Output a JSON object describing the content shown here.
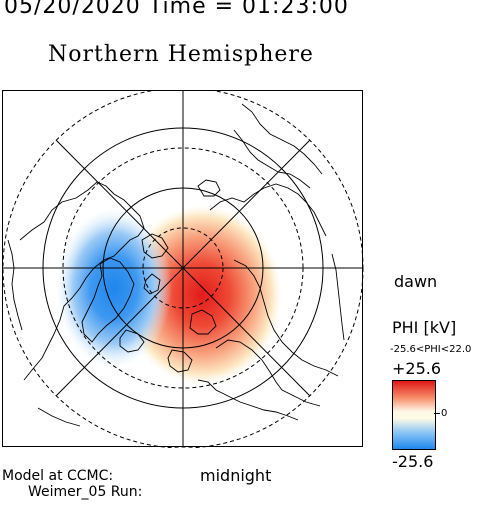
{
  "header": {
    "date_time": "05/20/2020 Time = 01:23:00",
    "title": "Northern Hemisphere"
  },
  "map": {
    "dawn_label": "dawn",
    "midnight_label": "midnight",
    "potential_cells": [
      {
        "sign": "positive",
        "color": "#e21a1a"
      },
      {
        "sign": "negative",
        "color": "#1f86ec"
      }
    ]
  },
  "colorbar": {
    "title": "PHI [kV]",
    "range_text": "-25.6<PHI<22.0",
    "max_label": "+25.6",
    "zero_label": "0",
    "min_label": "-25.6",
    "colors": [
      "#e01818",
      "#fffbe6",
      "#1e88ee"
    ]
  },
  "footer": {
    "model_label": "Model at CCMC:",
    "run_label": "Weimer_05 Run:"
  }
}
